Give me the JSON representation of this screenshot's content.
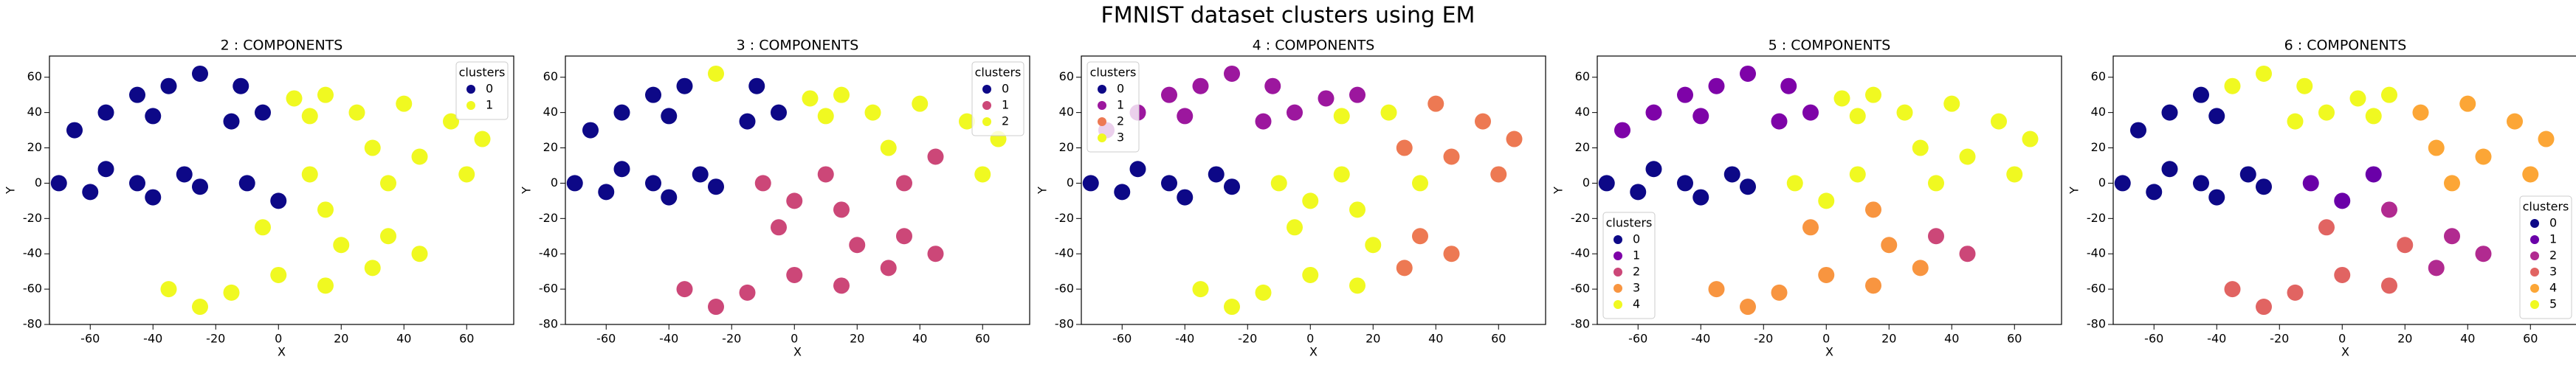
{
  "title": "FMNIST dataset clusters using EM",
  "chart_data": [
    {
      "type": "scatter",
      "title": "2 : COMPONENTS",
      "xlabel": "X",
      "ylabel": "Y",
      "xlim": [
        -73,
        75
      ],
      "ylim": [
        -80,
        72
      ],
      "xticks": [
        -60,
        -40,
        -20,
        0,
        20,
        40,
        60
      ],
      "yticks": [
        -80,
        -60,
        -40,
        -20,
        0,
        20,
        40,
        60
      ],
      "legend_title": "clusters",
      "legend": "upper right",
      "series": [
        {
          "name": "0",
          "color": "#0d0887",
          "x": [
            -70,
            -60,
            -55,
            -45,
            -40,
            -30,
            -25,
            -65,
            -55,
            -45,
            -35,
            -25,
            -40,
            -15,
            -5,
            -12,
            -10,
            0
          ],
          "values": [
            0,
            -5,
            8,
            0,
            -8,
            5,
            -2,
            30,
            40,
            50,
            55,
            62,
            38,
            35,
            40,
            55,
            0,
            -10
          ]
        },
        {
          "name": "1",
          "color": "#f0f921",
          "x": [
            5,
            15,
            10,
            25,
            40,
            55,
            65,
            30,
            45,
            60,
            35,
            10,
            15,
            -5,
            20,
            35,
            45,
            30,
            -35,
            -25,
            -15,
            0,
            15
          ],
          "values": [
            48,
            50,
            38,
            40,
            45,
            35,
            25,
            20,
            15,
            5,
            0,
            5,
            -15,
            -25,
            -35,
            -30,
            -40,
            -48,
            -60,
            -70,
            -62,
            -52,
            -58
          ]
        }
      ]
    },
    {
      "type": "scatter",
      "title": "3 : COMPONENTS",
      "xlabel": "X",
      "ylabel": "Y",
      "xlim": [
        -73,
        75
      ],
      "ylim": [
        -80,
        72
      ],
      "xticks": [
        -60,
        -40,
        -20,
        0,
        20,
        40,
        60
      ],
      "yticks": [
        -80,
        -60,
        -40,
        -20,
        0,
        20,
        40,
        60
      ],
      "legend_title": "clusters",
      "legend": "upper right",
      "series": [
        {
          "name": "0",
          "color": "#0d0887",
          "x": [
            -70,
            -60,
            -55,
            -45,
            -40,
            -30,
            -25,
            -65,
            -55,
            -45,
            -35,
            -40,
            -15,
            -5,
            -12
          ],
          "values": [
            0,
            -5,
            8,
            0,
            -8,
            5,
            -2,
            30,
            40,
            50,
            55,
            38,
            35,
            40,
            55
          ]
        },
        {
          "name": "1",
          "color": "#cc4778",
          "x": [
            -10,
            0,
            10,
            15,
            -5,
            20,
            35,
            45,
            30,
            -35,
            -25,
            -15,
            0,
            15,
            35,
            45
          ],
          "values": [
            0,
            -10,
            5,
            -15,
            -25,
            -35,
            -30,
            -40,
            -48,
            -60,
            -70,
            -62,
            -52,
            -58,
            0,
            15
          ]
        },
        {
          "name": "2",
          "color": "#f0f921",
          "x": [
            -25,
            5,
            15,
            10,
            25,
            40,
            55,
            65,
            30,
            60
          ],
          "values": [
            62,
            48,
            50,
            38,
            40,
            45,
            35,
            25,
            20,
            5
          ]
        }
      ]
    },
    {
      "type": "scatter",
      "title": "4 : COMPONENTS",
      "xlabel": "X",
      "ylabel": "Y",
      "xlim": [
        -73,
        75
      ],
      "ylim": [
        -80,
        72
      ],
      "xticks": [
        -60,
        -40,
        -20,
        0,
        20,
        40,
        60
      ],
      "yticks": [
        -80,
        -60,
        -40,
        -20,
        0,
        20,
        40,
        60
      ],
      "legend_title": "clusters",
      "legend": "upper left",
      "series": [
        {
          "name": "0",
          "color": "#0d0887",
          "x": [
            -70,
            -60,
            -55,
            -45,
            -40,
            -30,
            -25
          ],
          "values": [
            0,
            -5,
            8,
            0,
            -8,
            5,
            -2
          ]
        },
        {
          "name": "1",
          "color": "#9c179e",
          "x": [
            -65,
            -55,
            -45,
            -35,
            -25,
            -40,
            -15,
            -5,
            -12,
            5,
            15
          ],
          "values": [
            30,
            40,
            50,
            55,
            62,
            38,
            35,
            40,
            55,
            48,
            50
          ]
        },
        {
          "name": "2",
          "color": "#ed7953",
          "x": [
            40,
            55,
            65,
            30,
            45,
            60,
            35,
            45,
            30
          ],
          "values": [
            45,
            35,
            25,
            20,
            15,
            5,
            -30,
            -40,
            -48
          ]
        },
        {
          "name": "3",
          "color": "#f0f921",
          "x": [
            10,
            25,
            35,
            -10,
            0,
            10,
            15,
            -5,
            20,
            -35,
            -25,
            -15,
            0,
            15
          ],
          "values": [
            38,
            40,
            0,
            0,
            -10,
            5,
            -15,
            -25,
            -35,
            -60,
            -70,
            -62,
            -52,
            -58
          ]
        }
      ]
    },
    {
      "type": "scatter",
      "title": "5 : COMPONENTS",
      "xlabel": "X",
      "ylabel": "Y",
      "xlim": [
        -73,
        75
      ],
      "ylim": [
        -80,
        72
      ],
      "xticks": [
        -60,
        -40,
        -20,
        0,
        20,
        40,
        60
      ],
      "yticks": [
        -80,
        -60,
        -40,
        -20,
        0,
        20,
        40,
        60
      ],
      "legend_title": "clusters",
      "legend": "lower left",
      "series": [
        {
          "name": "0",
          "color": "#0d0887",
          "x": [
            -70,
            -60,
            -55,
            -45,
            -40,
            -30,
            -25
          ],
          "values": [
            0,
            -5,
            8,
            0,
            -8,
            5,
            -2
          ]
        },
        {
          "name": "1",
          "color": "#7e03a8",
          "x": [
            -65,
            -55,
            -45,
            -35,
            -25,
            -40,
            -15,
            -5,
            -12
          ],
          "values": [
            30,
            40,
            50,
            55,
            62,
            38,
            35,
            40,
            55
          ]
        },
        {
          "name": "2",
          "color": "#cc4778",
          "x": [
            35,
            45
          ],
          "values": [
            -30,
            -40
          ]
        },
        {
          "name": "3",
          "color": "#f89540",
          "x": [
            -5,
            15,
            20,
            30,
            -35,
            -25,
            -15,
            0,
            15
          ],
          "values": [
            -25,
            -15,
            -35,
            -48,
            -60,
            -70,
            -62,
            -52,
            -58
          ]
        },
        {
          "name": "4",
          "color": "#f0f921",
          "x": [
            5,
            15,
            10,
            25,
            40,
            55,
            65,
            30,
            45,
            60,
            35,
            -10,
            0,
            10
          ],
          "values": [
            48,
            50,
            38,
            40,
            45,
            35,
            25,
            20,
            15,
            5,
            0,
            0,
            -10,
            5
          ]
        }
      ]
    },
    {
      "type": "scatter",
      "title": "6 : COMPONENTS",
      "xlabel": "X",
      "ylabel": "Y",
      "xlim": [
        -73,
        75
      ],
      "ylim": [
        -80,
        72
      ],
      "xticks": [
        -60,
        -40,
        -20,
        0,
        20,
        40,
        60
      ],
      "yticks": [
        -80,
        -60,
        -40,
        -20,
        0,
        20,
        40,
        60
      ],
      "legend_title": "clusters",
      "legend": "lower right",
      "series": [
        {
          "name": "0",
          "color": "#0d0887",
          "x": [
            -70,
            -60,
            -55,
            -45,
            -40,
            -30,
            -25,
            -65,
            -55,
            -45,
            -40
          ],
          "values": [
            0,
            -5,
            8,
            0,
            -8,
            5,
            -2,
            30,
            40,
            50,
            38
          ]
        },
        {
          "name": "1",
          "color": "#6a00a8",
          "x": [
            -10,
            0,
            10
          ],
          "values": [
            0,
            -10,
            5
          ]
        },
        {
          "name": "2",
          "color": "#b12a90",
          "x": [
            15,
            35,
            45,
            30
          ],
          "values": [
            -15,
            -30,
            -40,
            -48
          ]
        },
        {
          "name": "3",
          "color": "#e16462",
          "x": [
            -5,
            20,
            -35,
            -25,
            -15,
            0,
            15
          ],
          "values": [
            -25,
            -35,
            -60,
            -70,
            -62,
            -52,
            -58
          ]
        },
        {
          "name": "4",
          "color": "#fca636",
          "x": [
            25,
            40,
            55,
            65,
            30,
            45,
            60,
            35
          ],
          "values": [
            40,
            45,
            35,
            25,
            20,
            15,
            5,
            0
          ]
        },
        {
          "name": "5",
          "color": "#f0f921",
          "x": [
            -35,
            -25,
            -15,
            -5,
            -12,
            5,
            15,
            10
          ],
          "values": [
            55,
            62,
            35,
            40,
            55,
            48,
            50,
            38
          ]
        }
      ]
    }
  ]
}
